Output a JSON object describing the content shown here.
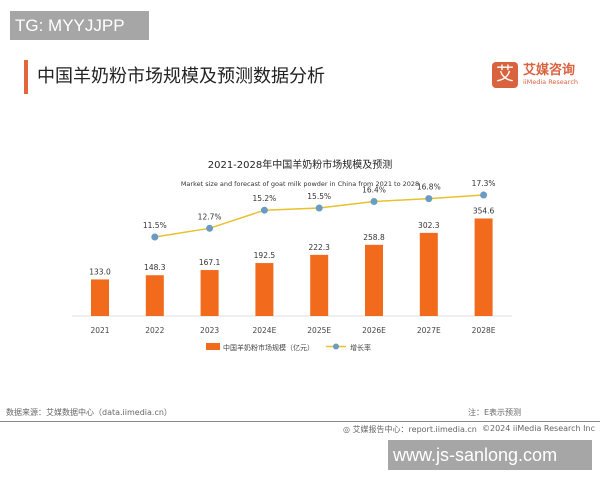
{
  "watermarks": {
    "top": "TG: MYYJJPP",
    "bottom": "www.js-sanlong.com"
  },
  "header": {
    "title": "中国羊奶粉市场规模及预测数据分析",
    "logo_mark": "艾",
    "logo_cn": "艾媒咨询",
    "logo_en": "iiMedia Research"
  },
  "footer": {
    "source": "数据来源：艾媒数据中心（data.iimedia.cn）",
    "note": "注：E表示预测",
    "report": "艾媒报告中心：report.iimedia.cn",
    "copyright": "©2024  iiMedia Research  Inc"
  },
  "colors": {
    "bar": "#f26b1d",
    "line": "#e8c12e",
    "point": "#6a9bc3"
  },
  "chart_data": {
    "type": "bar",
    "title": "2021-2028年中国羊奶粉市场规模及预测",
    "subtitle": "Market size and forecast of goat milk powder in China from 2021 to 2028",
    "categories": [
      "2021",
      "2022",
      "2023",
      "2024E",
      "2025E",
      "2026E",
      "2027E",
      "2028E"
    ],
    "series": [
      {
        "name": "中国羊奶粉市场规模（亿元）",
        "type": "bar",
        "values": [
          133.0,
          148.3,
          167.1,
          192.5,
          222.3,
          258.8,
          302.3,
          354.6
        ],
        "labels": [
          "133.0",
          "148.3",
          "167.1",
          "192.5",
          "222.3",
          "258.8",
          "302.3",
          "354.6"
        ]
      },
      {
        "name": "增长率",
        "type": "line",
        "values": [
          null,
          11.5,
          12.7,
          15.2,
          15.5,
          16.4,
          16.8,
          17.3
        ],
        "labels": [
          "",
          "11.5%",
          "12.7%",
          "15.2%",
          "15.5%",
          "16.4%",
          "16.8%",
          "17.3%"
        ]
      }
    ],
    "legend": "bottom",
    "grid": false
  }
}
